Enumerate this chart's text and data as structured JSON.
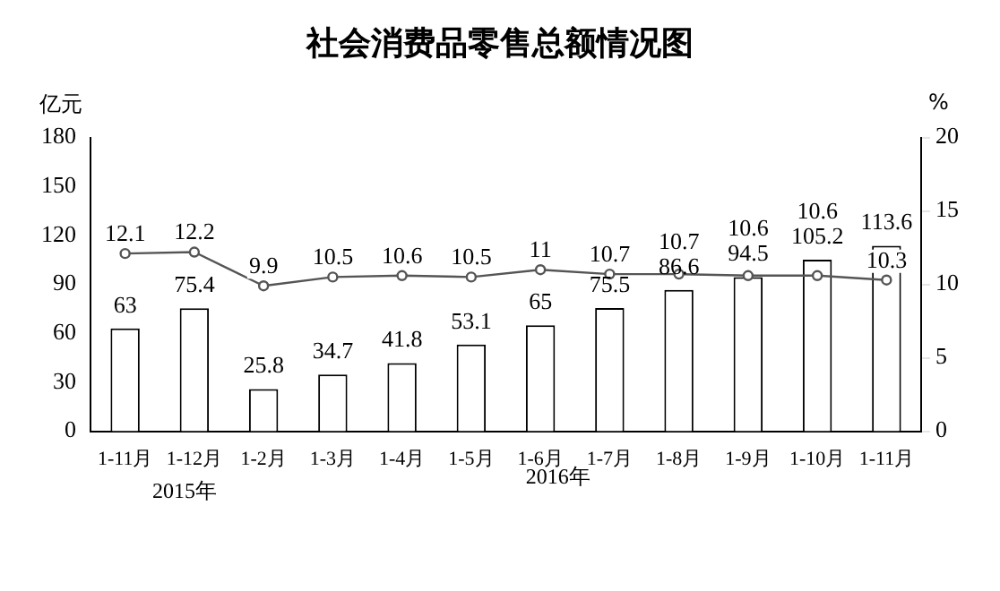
{
  "chart_data": {
    "type": "bar",
    "title": "社会消费品零售总额情况图",
    "ylabel": "亿元",
    "y2label": "%",
    "categories": [
      "1-11月",
      "1-12月",
      "1-2月",
      "1-3月",
      "1-4月",
      "1-5月",
      "1-6月",
      "1-7月",
      "1-8月",
      "1-9月",
      "1-10月",
      "1-11月"
    ],
    "series": [
      {
        "color": "#ffffff",
        "values": [
          63,
          75.4,
          25.8,
          34.7,
          41.8,
          53.1,
          65,
          75.5,
          86.6,
          94.5,
          105.2,
          113.6
        ]
      },
      {
        "type": "line",
        "axis": "y2",
        "color": "#555555",
        "marker": "circle",
        "values": [
          12.1,
          12.2,
          9.9,
          10.5,
          10.6,
          10.5,
          11,
          10.7,
          10.7,
          10.6,
          10.6,
          10.3
        ]
      }
    ],
    "ylim": [
      0,
      180
    ],
    "yticks": [
      0,
      30,
      60,
      90,
      120,
      150,
      180
    ],
    "y2lim": [
      0,
      20
    ],
    "y2ticks": [
      0,
      5,
      10,
      15,
      20
    ],
    "data_labels": true,
    "grid": false,
    "legend": false,
    "annotations": [
      "2015年",
      "2016年"
    ]
  }
}
